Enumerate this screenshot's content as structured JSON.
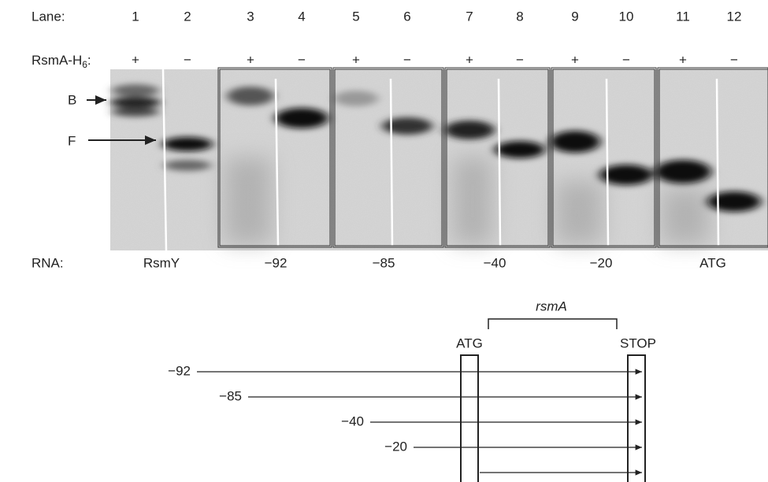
{
  "lanes": {
    "label": "Lane:",
    "numbers": [
      "1",
      "2",
      "3",
      "4",
      "5",
      "6",
      "7",
      "8",
      "9",
      "10",
      "11",
      "12"
    ]
  },
  "protein": {
    "label": "RsmA-H",
    "subscript": "6",
    "suffix": ":",
    "signs": [
      "+",
      "−",
      "+",
      "−",
      "+",
      "−",
      "+",
      "−",
      "+",
      "−",
      "+",
      "−"
    ]
  },
  "bands": {
    "bound": "B",
    "free": "F"
  },
  "rna": {
    "label": "RNA:",
    "names": [
      "RsmY",
      "−92",
      "−85",
      "−40",
      "−20",
      "ATG"
    ]
  },
  "diagram": {
    "gene": "rsmA",
    "start": "ATG",
    "stop": "STOP",
    "constructs": [
      "−92",
      "−85",
      "−40",
      "−20"
    ]
  }
}
